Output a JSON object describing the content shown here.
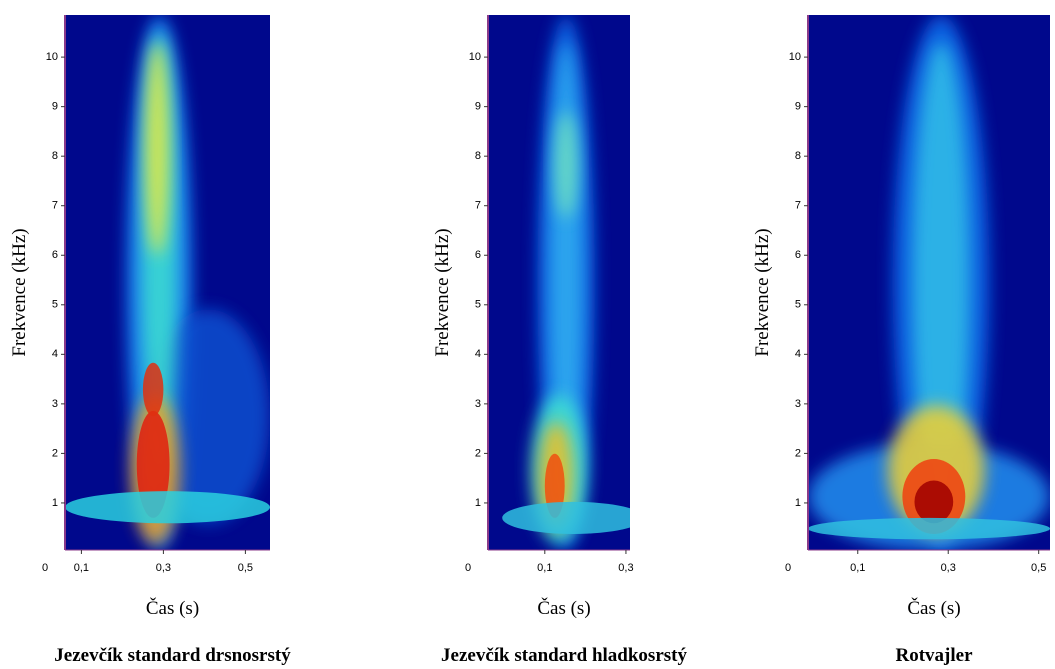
{
  "chart_data": [
    {
      "type": "spectrogram",
      "title": "Jezevčík standard drsnosrstý",
      "xlabel": "Čas (s)",
      "ylabel": "Frekvence (kHz)",
      "origin": 0,
      "xlim": [
        0.06,
        0.56
      ],
      "xticks": [
        {
          "value": 0.1,
          "label": "0,1"
        },
        {
          "value": 0.3,
          "label": "0,3"
        },
        {
          "value": 0.5,
          "label": "0,5"
        }
      ],
      "ylim": [
        0.05,
        10.85
      ],
      "yticks": [
        1,
        2,
        3,
        4,
        5,
        6,
        7,
        8,
        9,
        10
      ]
    },
    {
      "type": "spectrogram",
      "title": "Jezevčík standard hladkosrstý",
      "xlabel": "Čas (s)",
      "ylabel": "Frekvence (kHz)",
      "origin": 0,
      "xlim": [
        -0.04,
        0.31
      ],
      "xticks": [
        {
          "value": 0.1,
          "label": "0,1"
        },
        {
          "value": 0.3,
          "label": "0,3"
        }
      ],
      "ylim": [
        0.05,
        10.85
      ],
      "yticks": [
        1,
        2,
        3,
        4,
        5,
        6,
        7,
        8,
        9,
        10
      ]
    },
    {
      "type": "spectrogram",
      "title": "Rotvajler",
      "xlabel": "Čas (s)",
      "ylabel": "Frekvence (kHz)",
      "origin": 0,
      "xlim": [
        -0.01,
        0.525
      ],
      "xticks": [
        {
          "value": 0.1,
          "label": "0,1"
        },
        {
          "value": 0.3,
          "label": "0,3"
        },
        {
          "value": 0.5,
          "label": "0,5"
        }
      ],
      "ylim": [
        0.05,
        10.85
      ],
      "yticks": [
        1,
        2,
        3,
        4,
        5,
        6,
        7,
        8,
        9,
        10
      ]
    }
  ]
}
